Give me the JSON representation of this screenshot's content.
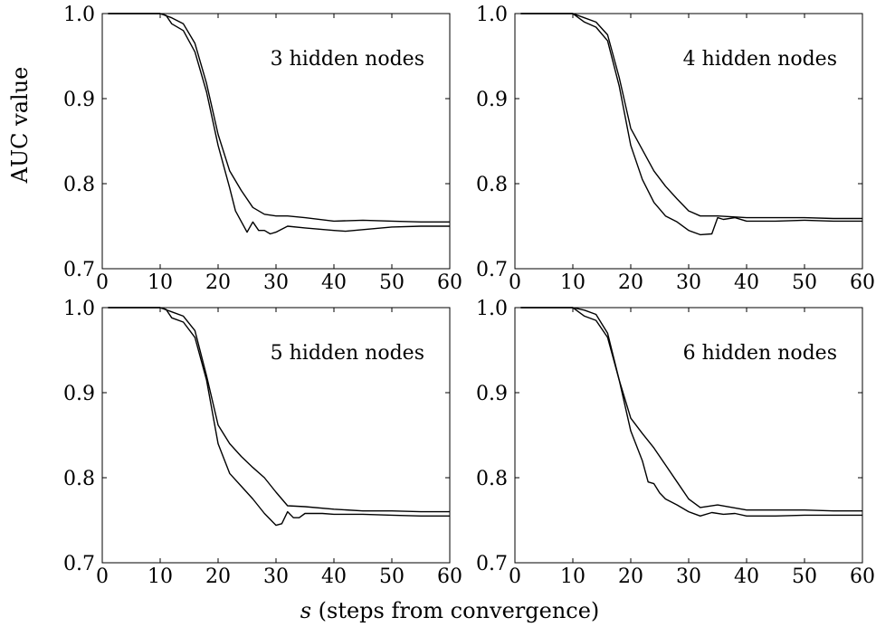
{
  "figure": {
    "ylabel": "AUC value",
    "xlabel_var": "s",
    "xlabel_rest": " (steps from convergence)"
  },
  "chart_data": [
    {
      "type": "line",
      "annotation": "3 hidden nodes",
      "xlim": [
        0,
        60
      ],
      "ylim": [
        0.7,
        1.0
      ],
      "xticks": [
        0,
        10,
        20,
        30,
        40,
        50,
        60
      ],
      "yticks": [
        0.7,
        0.8,
        0.9,
        1.0
      ],
      "series": [
        {
          "x": [
            1,
            10,
            12,
            14,
            16,
            18,
            19,
            20,
            22,
            24,
            26,
            28,
            30,
            32,
            35,
            40,
            45,
            50,
            55,
            60
          ],
          "y": [
            1.0,
            1.0,
            0.995,
            0.988,
            0.965,
            0.918,
            0.888,
            0.858,
            0.815,
            0.792,
            0.772,
            0.764,
            0.762,
            0.762,
            0.76,
            0.756,
            0.757,
            0.756,
            0.755,
            0.755
          ]
        },
        {
          "x": [
            1,
            10,
            11,
            12,
            14,
            16,
            18,
            20,
            22,
            23,
            25,
            26,
            27,
            28,
            29,
            30,
            32,
            35,
            40,
            42,
            45,
            50,
            55,
            60
          ],
          "y": [
            1.0,
            1.0,
            0.998,
            0.988,
            0.98,
            0.955,
            0.908,
            0.845,
            0.795,
            0.768,
            0.743,
            0.755,
            0.745,
            0.745,
            0.741,
            0.743,
            0.75,
            0.748,
            0.745,
            0.744,
            0.746,
            0.749,
            0.75,
            0.75
          ]
        }
      ]
    },
    {
      "type": "line",
      "annotation": "4 hidden nodes",
      "xlim": [
        0,
        60
      ],
      "ylim": [
        0.7,
        1.0
      ],
      "xticks": [
        0,
        10,
        20,
        30,
        40,
        50,
        60
      ],
      "yticks": [
        0.7,
        0.8,
        0.9,
        1.0
      ],
      "series": [
        {
          "x": [
            1,
            10,
            12,
            14,
            16,
            18,
            20,
            22,
            24,
            26,
            28,
            30,
            32,
            35,
            40,
            45,
            50,
            55,
            60
          ],
          "y": [
            1.0,
            1.0,
            0.995,
            0.99,
            0.975,
            0.925,
            0.865,
            0.84,
            0.815,
            0.797,
            0.782,
            0.768,
            0.762,
            0.762,
            0.76,
            0.76,
            0.76,
            0.759,
            0.759
          ]
        },
        {
          "x": [
            1,
            10,
            12,
            14,
            16,
            18,
            20,
            22,
            24,
            26,
            28,
            30,
            32,
            34,
            35,
            36,
            38,
            40,
            45,
            50,
            55,
            60
          ],
          "y": [
            1.0,
            1.0,
            0.99,
            0.984,
            0.968,
            0.915,
            0.845,
            0.805,
            0.778,
            0.762,
            0.755,
            0.745,
            0.74,
            0.741,
            0.76,
            0.758,
            0.76,
            0.756,
            0.756,
            0.757,
            0.756,
            0.756
          ]
        }
      ]
    },
    {
      "type": "line",
      "annotation": "5 hidden nodes",
      "xlim": [
        0,
        60
      ],
      "ylim": [
        0.7,
        1.0
      ],
      "xticks": [
        0,
        10,
        20,
        30,
        40,
        50,
        60
      ],
      "yticks": [
        0.7,
        0.8,
        0.9,
        1.0
      ],
      "series": [
        {
          "x": [
            1,
            10,
            12,
            14,
            16,
            18,
            20,
            22,
            24,
            26,
            28,
            30,
            32,
            35,
            40,
            45,
            50,
            55,
            60
          ],
          "y": [
            1.0,
            1.0,
            0.995,
            0.99,
            0.973,
            0.92,
            0.862,
            0.84,
            0.825,
            0.812,
            0.8,
            0.783,
            0.767,
            0.766,
            0.763,
            0.761,
            0.761,
            0.76,
            0.76
          ]
        },
        {
          "x": [
            1,
            10,
            11,
            12,
            14,
            16,
            18,
            20,
            22,
            24,
            26,
            28,
            30,
            31,
            32,
            33,
            34,
            35,
            38,
            40,
            45,
            50,
            55,
            60
          ],
          "y": [
            1.0,
            1.0,
            0.998,
            0.988,
            0.983,
            0.965,
            0.915,
            0.84,
            0.805,
            0.79,
            0.775,
            0.758,
            0.744,
            0.746,
            0.76,
            0.753,
            0.753,
            0.758,
            0.758,
            0.757,
            0.757,
            0.756,
            0.755,
            0.755
          ]
        }
      ]
    },
    {
      "type": "line",
      "annotation": "6 hidden nodes",
      "xlim": [
        0,
        60
      ],
      "ylim": [
        0.7,
        1.0
      ],
      "xticks": [
        0,
        10,
        20,
        30,
        40,
        50,
        60
      ],
      "yticks": [
        0.7,
        0.8,
        0.9,
        1.0
      ],
      "series": [
        {
          "x": [
            1,
            10,
            12,
            14,
            16,
            18,
            20,
            22,
            24,
            26,
            28,
            30,
            32,
            35,
            40,
            45,
            50,
            55,
            60
          ],
          "y": [
            1.0,
            1.0,
            0.997,
            0.992,
            0.97,
            0.915,
            0.87,
            0.852,
            0.835,
            0.815,
            0.795,
            0.775,
            0.765,
            0.768,
            0.762,
            0.762,
            0.762,
            0.761,
            0.761
          ]
        },
        {
          "x": [
            1,
            10,
            12,
            14,
            16,
            18,
            20,
            22,
            23,
            24,
            25,
            26,
            28,
            30,
            32,
            34,
            36,
            38,
            40,
            45,
            50,
            55,
            60
          ],
          "y": [
            1.0,
            1.0,
            0.99,
            0.985,
            0.965,
            0.915,
            0.855,
            0.82,
            0.795,
            0.793,
            0.782,
            0.775,
            0.768,
            0.76,
            0.755,
            0.759,
            0.757,
            0.758,
            0.755,
            0.755,
            0.756,
            0.756,
            0.756
          ]
        }
      ]
    }
  ]
}
